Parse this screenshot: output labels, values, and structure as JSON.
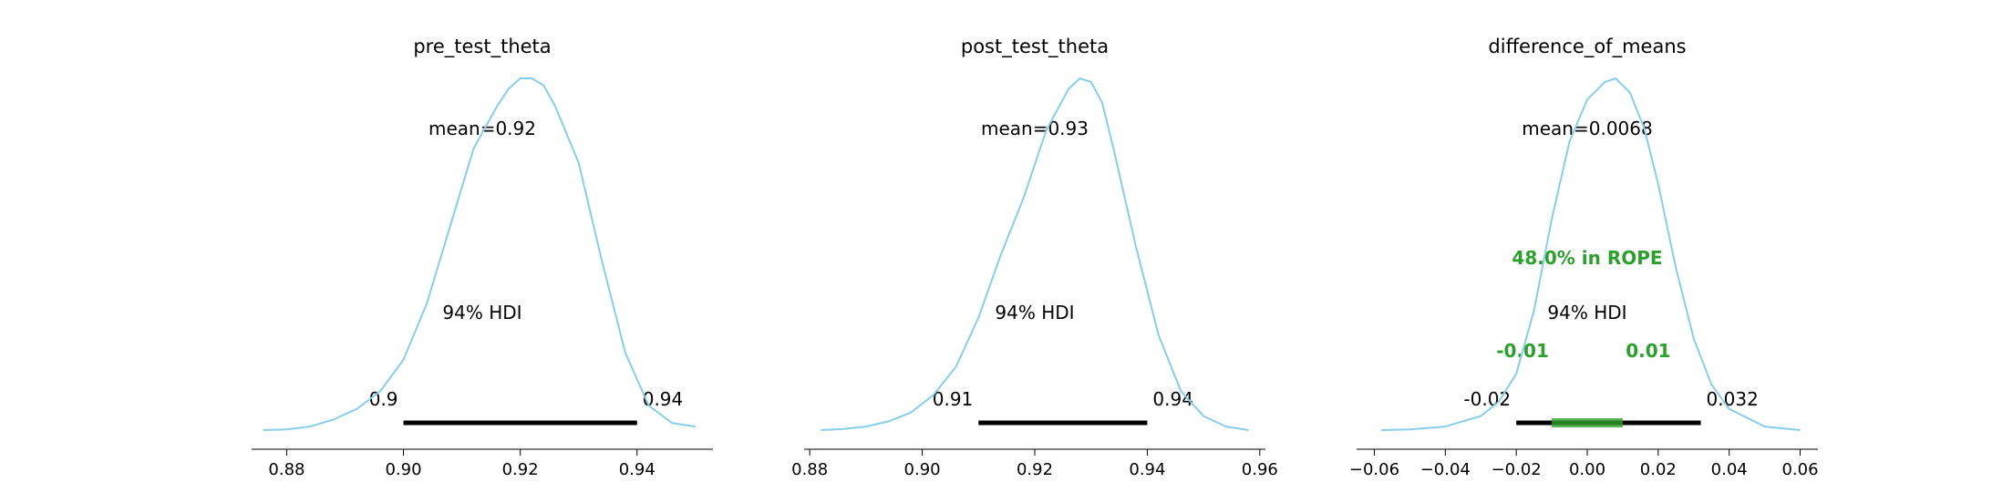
{
  "chart_data": [
    {
      "type": "area",
      "title": "pre_test_theta",
      "mean_label": "mean=0.92",
      "hdi_label": "94% HDI",
      "hdi": [
        0.9,
        0.94
      ],
      "hdi_tick_labels": [
        "0.9",
        "0.94"
      ],
      "xlim": [
        0.874,
        0.953
      ],
      "x_ticks": [
        0.88,
        0.9,
        0.92,
        0.94
      ],
      "x_tick_labels": [
        "0.88",
        "0.90",
        "0.92",
        "0.94"
      ],
      "line_color": "#87ceeb",
      "density": {
        "x": [
          0.876,
          0.88,
          0.884,
          0.888,
          0.892,
          0.896,
          0.9,
          0.904,
          0.908,
          0.912,
          0.916,
          0.918,
          0.92,
          0.922,
          0.924,
          0.926,
          0.93,
          0.934,
          0.938,
          0.942,
          0.946,
          0.95
        ],
        "y": [
          0.0,
          0.002,
          0.01,
          0.03,
          0.06,
          0.11,
          0.2,
          0.36,
          0.58,
          0.8,
          0.92,
          0.97,
          1.0,
          1.0,
          0.98,
          0.92,
          0.76,
          0.48,
          0.22,
          0.07,
          0.02,
          0.01
        ]
      }
    },
    {
      "type": "area",
      "title": "post_test_theta",
      "mean_label": "mean=0.93",
      "hdi_label": "94% HDI",
      "hdi": [
        0.91,
        0.94
      ],
      "hdi_tick_labels": [
        "0.91",
        "0.94"
      ],
      "xlim": [
        0.879,
        0.961
      ],
      "x_ticks": [
        0.88,
        0.9,
        0.92,
        0.94,
        0.96
      ],
      "x_tick_labels": [
        "0.88",
        "0.90",
        "0.92",
        "0.94",
        "0.96"
      ],
      "line_color": "#87ceeb",
      "density": {
        "x": [
          0.882,
          0.886,
          0.89,
          0.894,
          0.898,
          0.902,
          0.906,
          0.91,
          0.914,
          0.918,
          0.922,
          0.926,
          0.928,
          0.93,
          0.932,
          0.934,
          0.938,
          0.942,
          0.946,
          0.95,
          0.954,
          0.958
        ],
        "y": [
          0.0,
          0.003,
          0.01,
          0.025,
          0.05,
          0.1,
          0.18,
          0.32,
          0.5,
          0.66,
          0.85,
          0.97,
          1.0,
          0.99,
          0.93,
          0.8,
          0.52,
          0.27,
          0.11,
          0.04,
          0.01,
          0.0
        ]
      }
    },
    {
      "type": "area",
      "title": "difference_of_means",
      "mean_label": "mean=0.0068",
      "hdi_label": "94% HDI",
      "hdi": [
        -0.02,
        0.032
      ],
      "hdi_tick_labels": [
        "-0.02",
        "0.032"
      ],
      "rope": [
        -0.01,
        0.01
      ],
      "rope_label": "48.0% in ROPE",
      "rope_tick_labels": [
        "-0.01",
        "0.01"
      ],
      "rope_color": "#2ca02c",
      "xlim": [
        -0.065,
        0.065
      ],
      "x_ticks": [
        -0.06,
        -0.04,
        -0.02,
        0.0,
        0.02,
        0.04,
        0.06
      ],
      "x_tick_labels": [
        "−0.06",
        "−0.04",
        "−0.02",
        "0.00",
        "0.02",
        "0.04",
        "0.06"
      ],
      "line_color": "#87ceeb",
      "density": {
        "x": [
          -0.058,
          -0.05,
          -0.04,
          -0.03,
          -0.025,
          -0.02,
          -0.015,
          -0.01,
          -0.005,
          0.0,
          0.005,
          0.008,
          0.012,
          0.016,
          0.02,
          0.025,
          0.03,
          0.035,
          0.04,
          0.05,
          0.06
        ],
        "y": [
          0.0,
          0.002,
          0.01,
          0.04,
          0.08,
          0.16,
          0.34,
          0.6,
          0.82,
          0.94,
          0.99,
          1.0,
          0.96,
          0.86,
          0.7,
          0.46,
          0.26,
          0.13,
          0.06,
          0.01,
          0.0
        ]
      }
    }
  ]
}
